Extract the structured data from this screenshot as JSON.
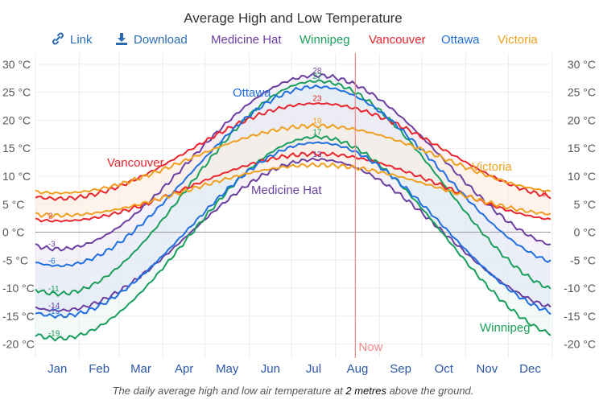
{
  "chart_data": {
    "type": "line",
    "title": "Average High and Low Temperature",
    "caption_parts": [
      "The daily average high and low air temperature at ",
      "2 metres",
      " above the ground."
    ],
    "toolbar": {
      "link_label": "Link",
      "download_label": "Download"
    },
    "y_unit": "°C",
    "ylim": [
      -22.5,
      32
    ],
    "y_ticks": [
      30,
      25,
      20,
      15,
      10,
      5,
      0,
      -5,
      -10,
      -15,
      -20
    ],
    "y_tick_labels": [
      "30 °C",
      "25 °C",
      "20 °C",
      "15 °C",
      "10 °C",
      "5 °C",
      "0 °C",
      "-5 °C",
      "-10 °C",
      "-15 °C",
      "-20 °C"
    ],
    "x_unit": "day of year",
    "xlim": [
      1,
      365
    ],
    "months": [
      "Jan",
      "Feb",
      "Mar",
      "Apr",
      "May",
      "Jun",
      "Jul",
      "Aug",
      "Sep",
      "Oct",
      "Nov",
      "Dec"
    ],
    "now": {
      "label": "Now",
      "day": 227
    },
    "grid": true,
    "legend_position": "top",
    "series": [
      {
        "name": "Medicine Hat",
        "color": "#6b3fa0",
        "high_min": -3,
        "high_max": 28,
        "low_min": -14,
        "low_max": 13,
        "labels": {
          "high_min": "-3",
          "high_max": "28",
          "low_min": "-14",
          "low_max": "13"
        }
      },
      {
        "name": "Winnipeg",
        "color": "#1a9e5c",
        "high_min": -11,
        "high_max": 27,
        "low_min": -19,
        "low_max": 17,
        "labels": {
          "high_min": "-11",
          "high_max": "27",
          "low_min": "-19",
          "low_max": "17"
        }
      },
      {
        "name": "Vancouver",
        "color": "#e8262d",
        "high_min": 6,
        "high_max": 23,
        "low_min": 2,
        "low_max": 14,
        "labels": {
          "high_min": "6",
          "high_max": "23",
          "low_min": "2"
        }
      },
      {
        "name": "Ottawa",
        "color": "#1f6fe0",
        "high_min": -6,
        "high_max": 26,
        "low_min": -15,
        "low_max": 16,
        "labels": {
          "high_min": "-6",
          "low_min": "-15"
        }
      },
      {
        "name": "Victoria",
        "color": "#f0a020",
        "high_min": 7,
        "high_max": 19,
        "low_min": 3,
        "low_max": 12,
        "labels": {
          "high_max": "19"
        }
      }
    ],
    "series_annotations": [
      "Ottawa",
      "Vancouver",
      "Medicine Hat",
      "Victoria",
      "Winnipeg"
    ]
  }
}
